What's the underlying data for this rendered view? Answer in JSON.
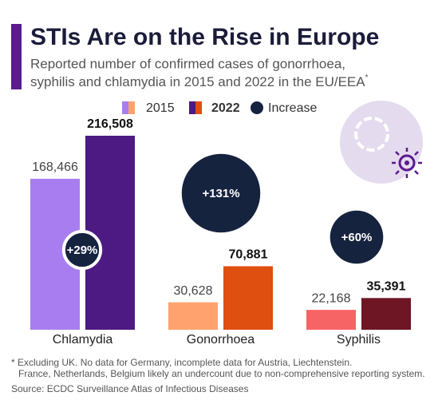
{
  "chart_data": {
    "type": "bar",
    "title": "STIs Are on the Rise in Europe",
    "subtitle": [
      "Reported number of confirmed cases of gonorrhoea,",
      "syphilis and chlamydia in 2015 and 2022 in the EU/EEA"
    ],
    "subtitle_mark": "*",
    "categories": [
      "Chlamydia",
      "Gonorrhoea",
      "Syphilis"
    ],
    "series": [
      {
        "name": "2015",
        "colors": [
          "#a87df0",
          "#ffa26e",
          "#f76466"
        ],
        "values": [
          168466,
          30628,
          22168
        ],
        "value_labels": [
          "168,466",
          "30,628",
          "22,168"
        ]
      },
      {
        "name": "2022",
        "colors": [
          "#4c1a82",
          "#df4f10",
          "#6e1624"
        ],
        "values": [
          216508,
          70881,
          35391
        ],
        "value_labels": [
          "216,508",
          "70,881",
          "35,391"
        ]
      }
    ],
    "increase": {
      "name": "Increase",
      "color": "#16233f",
      "values": [
        29,
        131,
        60
      ],
      "value_labels": [
        "+29%",
        "+131%",
        "+60%"
      ]
    },
    "footnote": [
      "* Excluding UK. No data for Germany, incomplete data for Austria, Liechtenstein.",
      "France, Netherlands, Belgium likely an undercount due to non-comprehensive reporting system."
    ],
    "source": "Source: ECDC Surveillance Atlas of Infectious Diseases"
  }
}
